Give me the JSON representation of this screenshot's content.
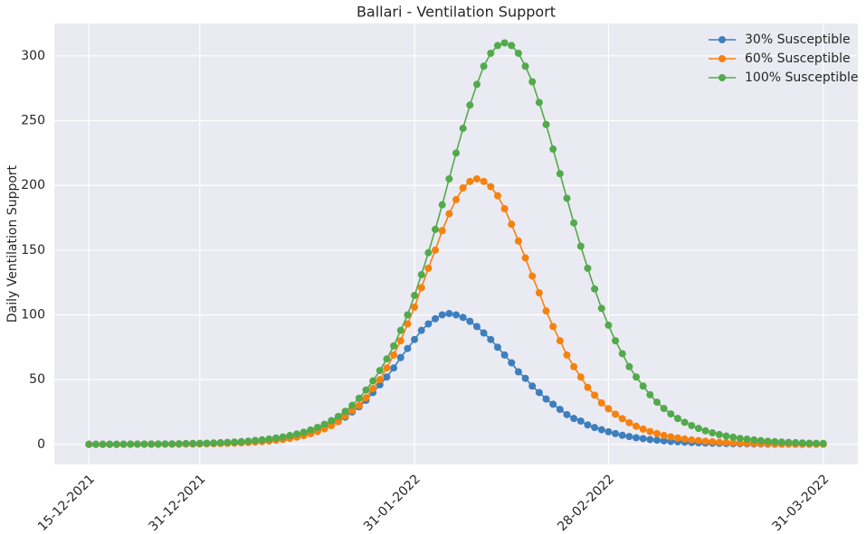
{
  "chart_data": {
    "type": "line",
    "title": "Ballari - Ventilation Support",
    "y_label": "Daily Ventilation Support",
    "x": [
      "15-12-2021",
      "16-12-2021",
      "17-12-2021",
      "18-12-2021",
      "19-12-2021",
      "20-12-2021",
      "21-12-2021",
      "22-12-2021",
      "23-12-2021",
      "24-12-2021",
      "25-12-2021",
      "26-12-2021",
      "27-12-2021",
      "28-12-2021",
      "29-12-2021",
      "30-12-2021",
      "31-12-2021",
      "01-01-2022",
      "02-01-2022",
      "03-01-2022",
      "04-01-2022",
      "05-01-2022",
      "06-01-2022",
      "07-01-2022",
      "08-01-2022",
      "09-01-2022",
      "10-01-2022",
      "11-01-2022",
      "12-01-2022",
      "13-01-2022",
      "14-01-2022",
      "15-01-2022",
      "16-01-2022",
      "17-01-2022",
      "18-01-2022",
      "19-01-2022",
      "20-01-2022",
      "21-01-2022",
      "22-01-2022",
      "23-01-2022",
      "24-01-2022",
      "25-01-2022",
      "26-01-2022",
      "27-01-2022",
      "28-01-2022",
      "29-01-2022",
      "30-01-2022",
      "31-01-2022",
      "01-02-2022",
      "02-02-2022",
      "03-02-2022",
      "04-02-2022",
      "05-02-2022",
      "06-02-2022",
      "07-02-2022",
      "08-02-2022",
      "09-02-2022",
      "10-02-2022",
      "11-02-2022",
      "12-02-2022",
      "13-02-2022",
      "14-02-2022",
      "15-02-2022",
      "16-02-2022",
      "17-02-2022",
      "18-02-2022",
      "19-02-2022",
      "20-02-2022",
      "21-02-2022",
      "22-02-2022",
      "23-02-2022",
      "24-02-2022",
      "25-02-2022",
      "26-02-2022",
      "27-02-2022",
      "28-02-2022",
      "01-03-2022",
      "02-03-2022",
      "03-03-2022",
      "04-03-2022",
      "05-03-2022",
      "06-03-2022",
      "07-03-2022",
      "08-03-2022",
      "09-03-2022",
      "10-03-2022",
      "11-03-2022",
      "12-03-2022",
      "13-03-2022",
      "14-03-2022",
      "15-03-2022",
      "16-03-2022",
      "17-03-2022",
      "18-03-2022",
      "19-03-2022",
      "20-03-2022",
      "21-03-2022",
      "22-03-2022",
      "23-03-2022",
      "24-03-2022",
      "25-03-2022",
      "26-03-2022",
      "27-03-2022",
      "28-03-2022",
      "29-03-2022",
      "30-03-2022",
      "31-03-2022"
    ],
    "series": [
      {
        "name": "30% Susceptible",
        "color": "#3d7fbe",
        "values": [
          0,
          0,
          0,
          0,
          0,
          0.1,
          0.1,
          0.1,
          0.1,
          0.1,
          0.1,
          0.2,
          0.2,
          0.2,
          0.3,
          0.3,
          0.4,
          0.5,
          0.6,
          0.7,
          0.9,
          1.1,
          1.3,
          1.6,
          1.9,
          2.3,
          2.7,
          3.3,
          4.0,
          4.8,
          5.9,
          7.1,
          8.6,
          10.6,
          12.6,
          15,
          18,
          21,
          25,
          29,
          34,
          40,
          46,
          52,
          59,
          67,
          74,
          81,
          88,
          93,
          97,
          100,
          101,
          100,
          98,
          95,
          91,
          86,
          81,
          75,
          69,
          63,
          56,
          51,
          45,
          40,
          35,
          31,
          27,
          23,
          20,
          18,
          15,
          13,
          11.3,
          9.7,
          8.3,
          7.0,
          6.0,
          5.1,
          4.4,
          3.7,
          3.2,
          2.7,
          2.3,
          2.0,
          1.7,
          1.4,
          1.2,
          1.0,
          0.9,
          0.8,
          0.6,
          0.5,
          0.5,
          0.4,
          0.3,
          0.3,
          0.2,
          0.2,
          0.2,
          0.2,
          0.1,
          0.1,
          0.1,
          0.1,
          0.1
        ]
      },
      {
        "name": "60% Susceptible",
        "color": "#f5820f",
        "values": [
          0,
          0,
          0,
          0,
          0,
          0,
          0.1,
          0.1,
          0.1,
          0.1,
          0.1,
          0.2,
          0.2,
          0.2,
          0.3,
          0.3,
          0.4,
          0.5,
          0.6,
          0.7,
          0.8,
          1.0,
          1.2,
          1.5,
          1.8,
          2.2,
          2.6,
          3.2,
          3.8,
          4.6,
          5.6,
          6.8,
          8.2,
          9.9,
          12.0,
          14.5,
          17.5,
          22,
          26,
          30,
          36,
          43,
          50,
          59,
          69,
          80,
          93,
          106,
          121,
          136,
          150,
          165,
          178,
          189,
          198,
          203,
          205,
          203,
          199,
          192,
          182,
          170,
          157,
          144,
          130,
          117,
          103,
          91,
          80,
          69,
          60,
          52,
          44,
          38,
          32,
          27.5,
          23.3,
          19.8,
          16.7,
          14.0,
          11.8,
          9.9,
          8.3,
          6.9,
          5.8,
          4.9,
          4.1,
          3.4,
          2.9,
          2.4,
          2.0,
          1.7,
          1.4,
          1.2,
          1.0,
          0.8,
          0.7,
          0.6,
          0.5,
          0.4,
          0.3,
          0.3,
          0.2,
          0.2,
          0.2,
          0.1,
          0.1
        ]
      },
      {
        "name": "100% Susceptible",
        "color": "#52aa4a",
        "values": [
          0.1,
          0.1,
          0.1,
          0.1,
          0.1,
          0.1,
          0.2,
          0.2,
          0.2,
          0.3,
          0.3,
          0.3,
          0.4,
          0.5,
          0.6,
          0.7,
          0.8,
          0.9,
          1.1,
          1.3,
          1.5,
          1.8,
          2.1,
          2.5,
          3.0,
          3.5,
          4.1,
          4.9,
          5.7,
          6.8,
          8.0,
          9.4,
          11.1,
          13.1,
          15.5,
          18.3,
          21.6,
          25.5,
          30.1,
          35.6,
          42,
          49,
          57,
          66,
          76,
          88,
          100,
          115,
          131,
          148,
          166,
          185,
          205,
          225,
          244,
          262,
          278,
          292,
          302,
          308,
          310,
          308,
          302,
          292,
          280,
          264,
          247,
          228,
          209,
          190,
          171,
          153,
          136,
          120,
          105,
          92,
          80,
          70,
          60,
          52,
          45,
          38.3,
          32.6,
          27.7,
          23.5,
          20.0,
          17.0,
          14.5,
          12.3,
          10.5,
          8.9,
          7.6,
          6.4,
          5.5,
          4.6,
          4.0,
          3.4,
          2.9,
          2.4,
          2.1,
          1.8,
          1.5,
          1.3,
          1.1,
          0.9,
          0.8,
          0.7
        ]
      }
    ],
    "xlim": [
      "10-12-2021",
      "05-04-2022"
    ],
    "xticks": [
      "15-12-2021",
      "31-12-2021",
      "31-01-2022",
      "28-02-2022",
      "31-03-2022"
    ],
    "ylim": [
      -15.5,
      325
    ],
    "yticks": [
      0,
      50,
      100,
      150,
      200,
      250,
      300
    ],
    "grid": true,
    "legend": "upper right"
  }
}
